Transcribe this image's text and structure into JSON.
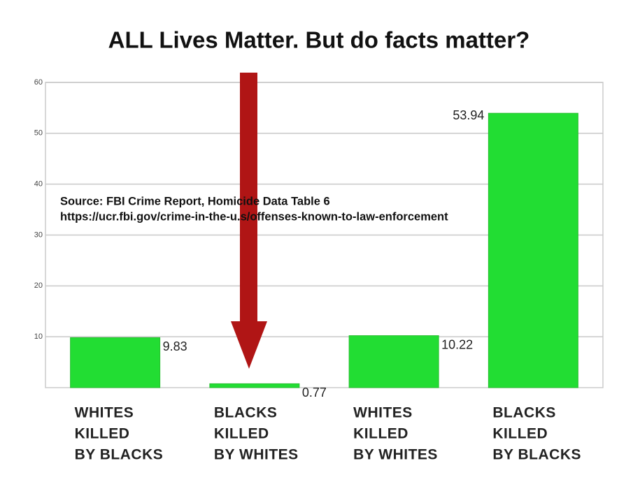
{
  "chart_data": {
    "type": "bar",
    "title": "ALL Lives Matter. But do facts matter?",
    "annotations": [
      "Source: FBI Crime Report, Homicide Data Table 6",
      "https://ucr.fbi.gov/crime-in-the-u.s/offenses-known-to-law-enforcement"
    ],
    "categories": [
      [
        "WHITES",
        "KILLED",
        "BY BLACKS"
      ],
      [
        "BLACKS",
        "KILLED",
        "BY WHITES"
      ],
      [
        "WHITES",
        "KILLED",
        "BY WHITES"
      ],
      [
        "BLACKS",
        "KILLED",
        "BY BLACKS"
      ]
    ],
    "values": [
      9.83,
      0.77,
      10.22,
      53.94
    ],
    "color": "#22dd33",
    "ylim": [
      0,
      60
    ],
    "yticks": [
      10,
      20,
      30,
      40,
      50,
      60
    ],
    "grid": true
  }
}
